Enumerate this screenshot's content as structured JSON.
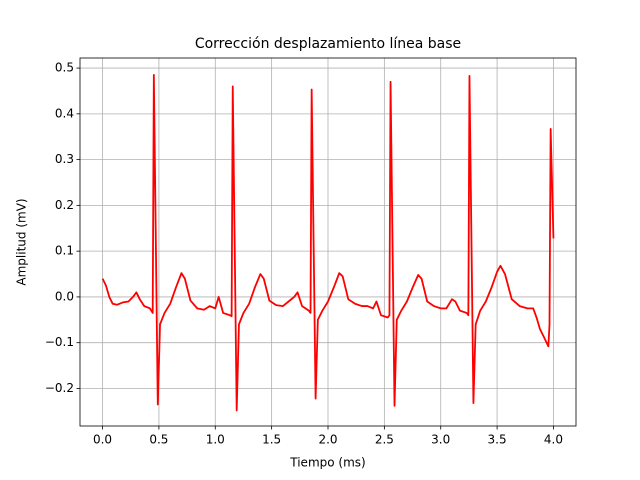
{
  "chart_data": {
    "type": "line",
    "title": "Corrección desplazamiento línea base",
    "xlabel": "Tiempo (ms)",
    "ylabel": "Amplitud (mV)",
    "xlim": [
      -0.2,
      4.2
    ],
    "ylim": [
      -0.282,
      0.522
    ],
    "xticks": [
      {
        "value": 0,
        "label": "0.0"
      },
      {
        "value": 0.5,
        "label": "0.5"
      },
      {
        "value": 1,
        "label": "1.0"
      },
      {
        "value": 1.5,
        "label": "1.5"
      },
      {
        "value": 2,
        "label": "2.0"
      },
      {
        "value": 2.5,
        "label": "2.5"
      },
      {
        "value": 3,
        "label": "3.0"
      },
      {
        "value": 3.5,
        "label": "3.5"
      },
      {
        "value": 4,
        "label": "4.0"
      }
    ],
    "yticks": [
      {
        "value": -0.2,
        "label": "−0.2"
      },
      {
        "value": -0.1,
        "label": "−0.1"
      },
      {
        "value": 0,
        "label": "0.0"
      },
      {
        "value": 0.1,
        "label": "0.1"
      },
      {
        "value": 0.2,
        "label": "0.2"
      },
      {
        "value": 0.3,
        "label": "0.3"
      },
      {
        "value": 0.4,
        "label": "0.4"
      },
      {
        "value": 0.5,
        "label": "0.5"
      }
    ],
    "grid": true,
    "series": [
      {
        "color": "#ff0000",
        "x": [
          0.0,
          0.03,
          0.06,
          0.09,
          0.13,
          0.18,
          0.23,
          0.27,
          0.3,
          0.33,
          0.37,
          0.42,
          0.445,
          0.455,
          0.49,
          0.51,
          0.55,
          0.6,
          0.65,
          0.7,
          0.73,
          0.78,
          0.84,
          0.9,
          0.95,
          1.0,
          1.03,
          1.07,
          1.13,
          1.145,
          1.155,
          1.19,
          1.21,
          1.25,
          1.3,
          1.35,
          1.4,
          1.43,
          1.48,
          1.54,
          1.6,
          1.65,
          1.7,
          1.73,
          1.77,
          1.83,
          1.845,
          1.855,
          1.89,
          1.91,
          1.95,
          2.0,
          2.05,
          2.1,
          2.13,
          2.18,
          2.24,
          2.3,
          2.35,
          2.4,
          2.43,
          2.47,
          2.53,
          2.545,
          2.555,
          2.59,
          2.61,
          2.65,
          2.7,
          2.75,
          2.8,
          2.83,
          2.88,
          2.94,
          3.0,
          3.05,
          3.1,
          3.13,
          3.17,
          3.23,
          3.245,
          3.255,
          3.29,
          3.31,
          3.35,
          3.4,
          3.45,
          3.5,
          3.53,
          3.57,
          3.63,
          3.7,
          3.77,
          3.82,
          3.85,
          3.88,
          3.92,
          3.955,
          3.965,
          3.975,
          4.0
        ],
        "values": [
          0.04,
          0.025,
          0.0,
          -0.015,
          -0.017,
          -0.012,
          -0.01,
          0.0,
          0.01,
          -0.005,
          -0.02,
          -0.025,
          -0.035,
          0.485,
          -0.235,
          -0.06,
          -0.035,
          -0.015,
          0.02,
          0.052,
          0.04,
          -0.008,
          -0.025,
          -0.028,
          -0.02,
          -0.025,
          0.0,
          -0.035,
          -0.04,
          -0.042,
          0.46,
          -0.248,
          -0.06,
          -0.035,
          -0.015,
          0.02,
          0.05,
          0.04,
          -0.008,
          -0.018,
          -0.02,
          -0.01,
          0.0,
          0.01,
          -0.02,
          -0.03,
          -0.035,
          0.453,
          -0.222,
          -0.05,
          -0.03,
          -0.01,
          0.02,
          0.052,
          0.045,
          -0.005,
          -0.015,
          -0.02,
          -0.02,
          -0.025,
          -0.01,
          -0.04,
          -0.045,
          -0.04,
          0.47,
          -0.238,
          -0.05,
          -0.03,
          -0.01,
          0.02,
          0.048,
          0.04,
          -0.01,
          -0.02,
          -0.025,
          -0.025,
          -0.005,
          -0.01,
          -0.03,
          -0.035,
          -0.04,
          0.483,
          -0.232,
          -0.06,
          -0.03,
          -0.01,
          0.02,
          0.055,
          0.068,
          0.05,
          -0.005,
          -0.02,
          -0.025,
          -0.025,
          -0.045,
          -0.07,
          -0.09,
          -0.108,
          -0.06,
          0.367,
          0.128
        ]
      }
    ]
  }
}
